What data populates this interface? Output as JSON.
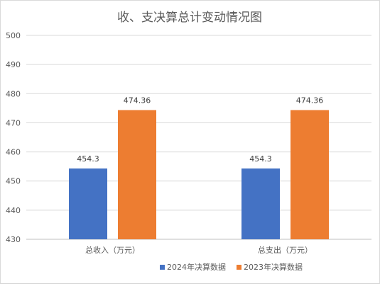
{
  "chart_data": {
    "type": "bar",
    "title": "收、支决算总计变动情况图",
    "categories": [
      "总收入（万元）",
      "总支出（万元）"
    ],
    "series": [
      {
        "name": "2024年决算数据",
        "color": "#4472C4",
        "values": [
          454.3,
          454.3
        ],
        "labels": [
          "454.3",
          "454.3"
        ]
      },
      {
        "name": "2023年决算数据",
        "color": "#ED7D31",
        "values": [
          474.36,
          474.36
        ],
        "labels": [
          "474.36",
          "474.36"
        ]
      }
    ],
    "ylim": [
      430,
      500
    ],
    "yticks": [
      "430",
      "440",
      "450",
      "460",
      "470",
      "480",
      "490",
      "500"
    ],
    "grid": true,
    "legend_position": "bottom",
    "xlabel": "",
    "ylabel": ""
  }
}
